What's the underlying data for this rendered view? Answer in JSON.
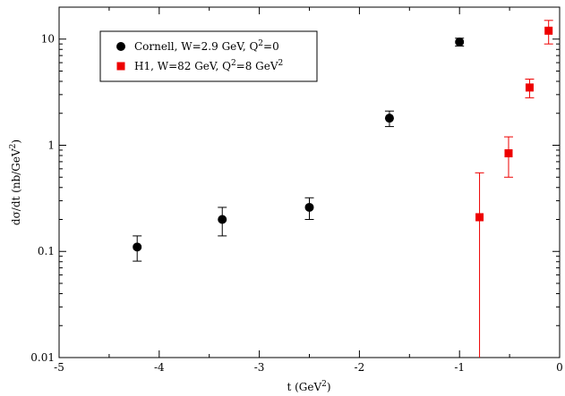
{
  "chart_data": {
    "type": "scatter",
    "xlabel": {
      "base": "t (GeV",
      "sup": "2",
      "tail": ")"
    },
    "ylabel": {
      "base": "dσ/dt  (nb/GeV",
      "sup": "2",
      "tail": ")"
    },
    "xlim": [
      -5,
      0
    ],
    "ylim": [
      0.01,
      20
    ],
    "yscale": "log",
    "grid": false,
    "legend_position": "top-left",
    "x_ticks": [
      -5,
      -4,
      -3,
      -2,
      -1,
      0
    ],
    "x_tick_labels": [
      "-5",
      "-4",
      "-3",
      "-2",
      "-1",
      "0"
    ],
    "y_ticks": [
      0.01,
      0.1,
      1,
      10
    ],
    "y_tick_labels": [
      "0.01",
      "0.1",
      "1",
      "10"
    ],
    "series": [
      {
        "legend": [
          {
            "t": "Cornell,  W=2.9 GeV, Q"
          },
          {
            "t": "2",
            "sup": true
          },
          {
            "t": "=0"
          }
        ],
        "marker": "circle",
        "color": "#000000",
        "points": [
          {
            "x": -4.22,
            "y": 0.11,
            "ylo": 0.081,
            "yhi": 0.14
          },
          {
            "x": -3.37,
            "y": 0.2,
            "ylo": 0.14,
            "yhi": 0.26
          },
          {
            "x": -2.5,
            "y": 0.26,
            "ylo": 0.2,
            "yhi": 0.32
          },
          {
            "x": -1.7,
            "y": 1.8,
            "ylo": 1.5,
            "yhi": 2.1
          },
          {
            "x": -1.0,
            "y": 9.4,
            "ylo": 8.6,
            "yhi": 10.2
          }
        ]
      },
      {
        "legend": [
          {
            "t": "H1,  W=82 GeV, Q"
          },
          {
            "t": "2",
            "sup": true
          },
          {
            "t": "=8 GeV"
          },
          {
            "t": "2",
            "sup": true
          }
        ],
        "marker": "square",
        "color": "#ee0000",
        "points": [
          {
            "x": -0.8,
            "y": 0.21,
            "ylo": 0.0001,
            "yhi": 0.55
          },
          {
            "x": -0.51,
            "y": 0.84,
            "ylo": 0.5,
            "yhi": 1.2
          },
          {
            "x": -0.3,
            "y": 3.5,
            "ylo": 2.8,
            "yhi": 4.2
          },
          {
            "x": -0.11,
            "y": 12.0,
            "ylo": 9.0,
            "yhi": 15.0
          }
        ]
      }
    ]
  }
}
